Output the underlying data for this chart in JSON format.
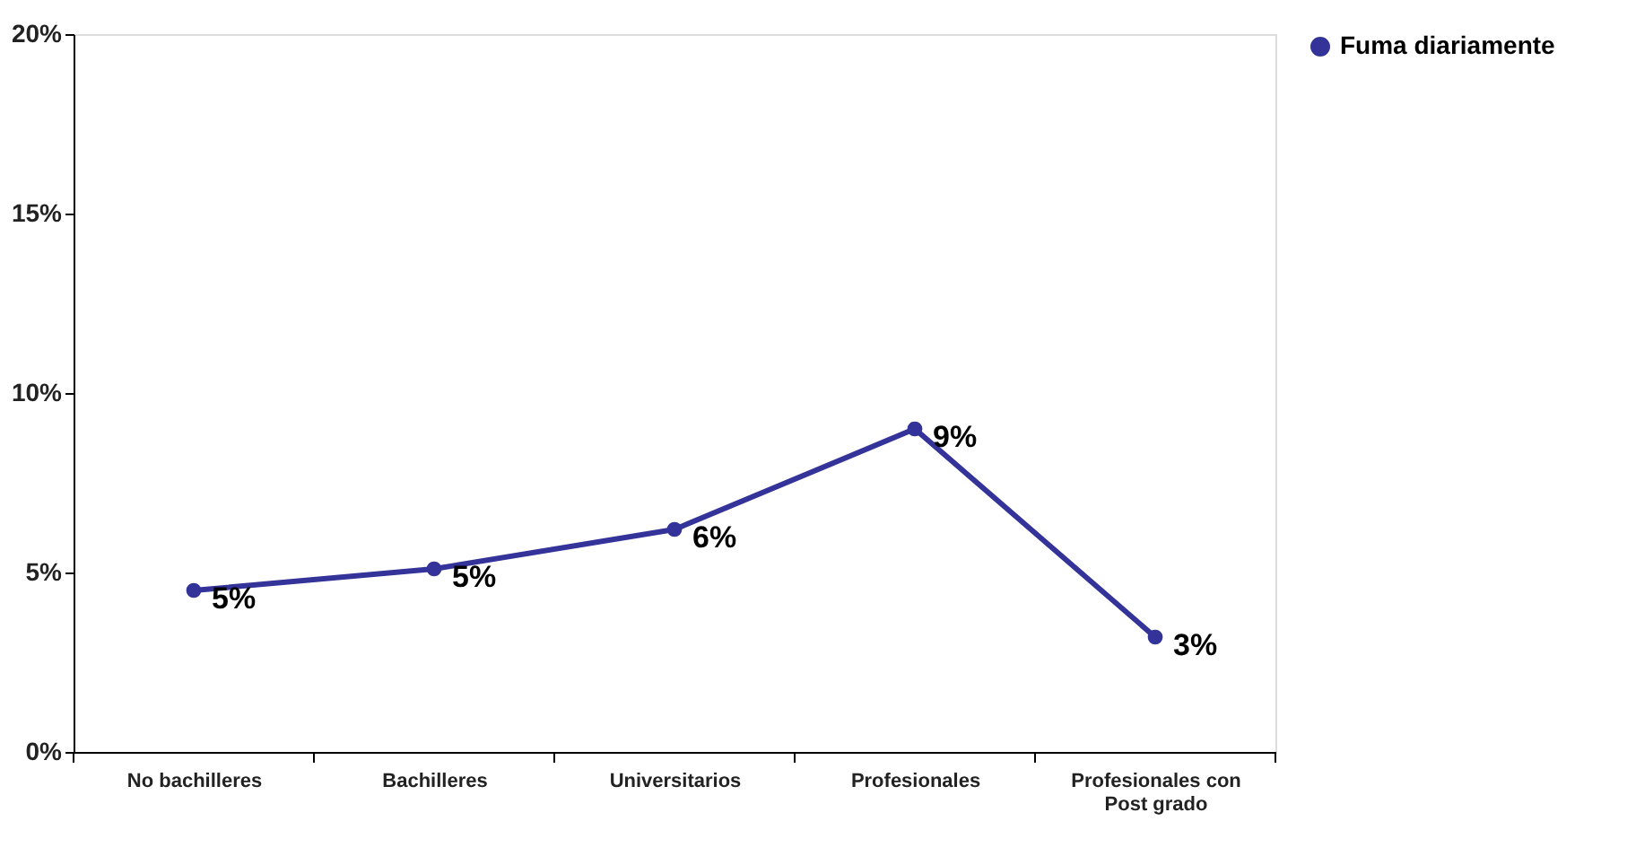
{
  "chart_data": {
    "type": "line",
    "categories": [
      "No bachilleres",
      "Bachilleres",
      "Universitarios",
      "Profesionales",
      "Profesionales con Post grado"
    ],
    "series": [
      {
        "name": "Fuma diariamente",
        "color": "#333399",
        "values": [
          4.5,
          5.1,
          6.2,
          9.0,
          3.2
        ],
        "value_labels": [
          "5%",
          "5%",
          "6%",
          "9%",
          "3%"
        ]
      }
    ],
    "ylim": [
      0,
      20
    ],
    "yticks": [
      {
        "value": 0,
        "label": "0%"
      },
      {
        "value": 5,
        "label": "5%"
      },
      {
        "value": 10,
        "label": "10%"
      },
      {
        "value": 15,
        "label": "15%"
      },
      {
        "value": 20,
        "label": "20%"
      }
    ],
    "grid": false,
    "legend": "right",
    "marker": "circle",
    "line_style": "solid"
  }
}
